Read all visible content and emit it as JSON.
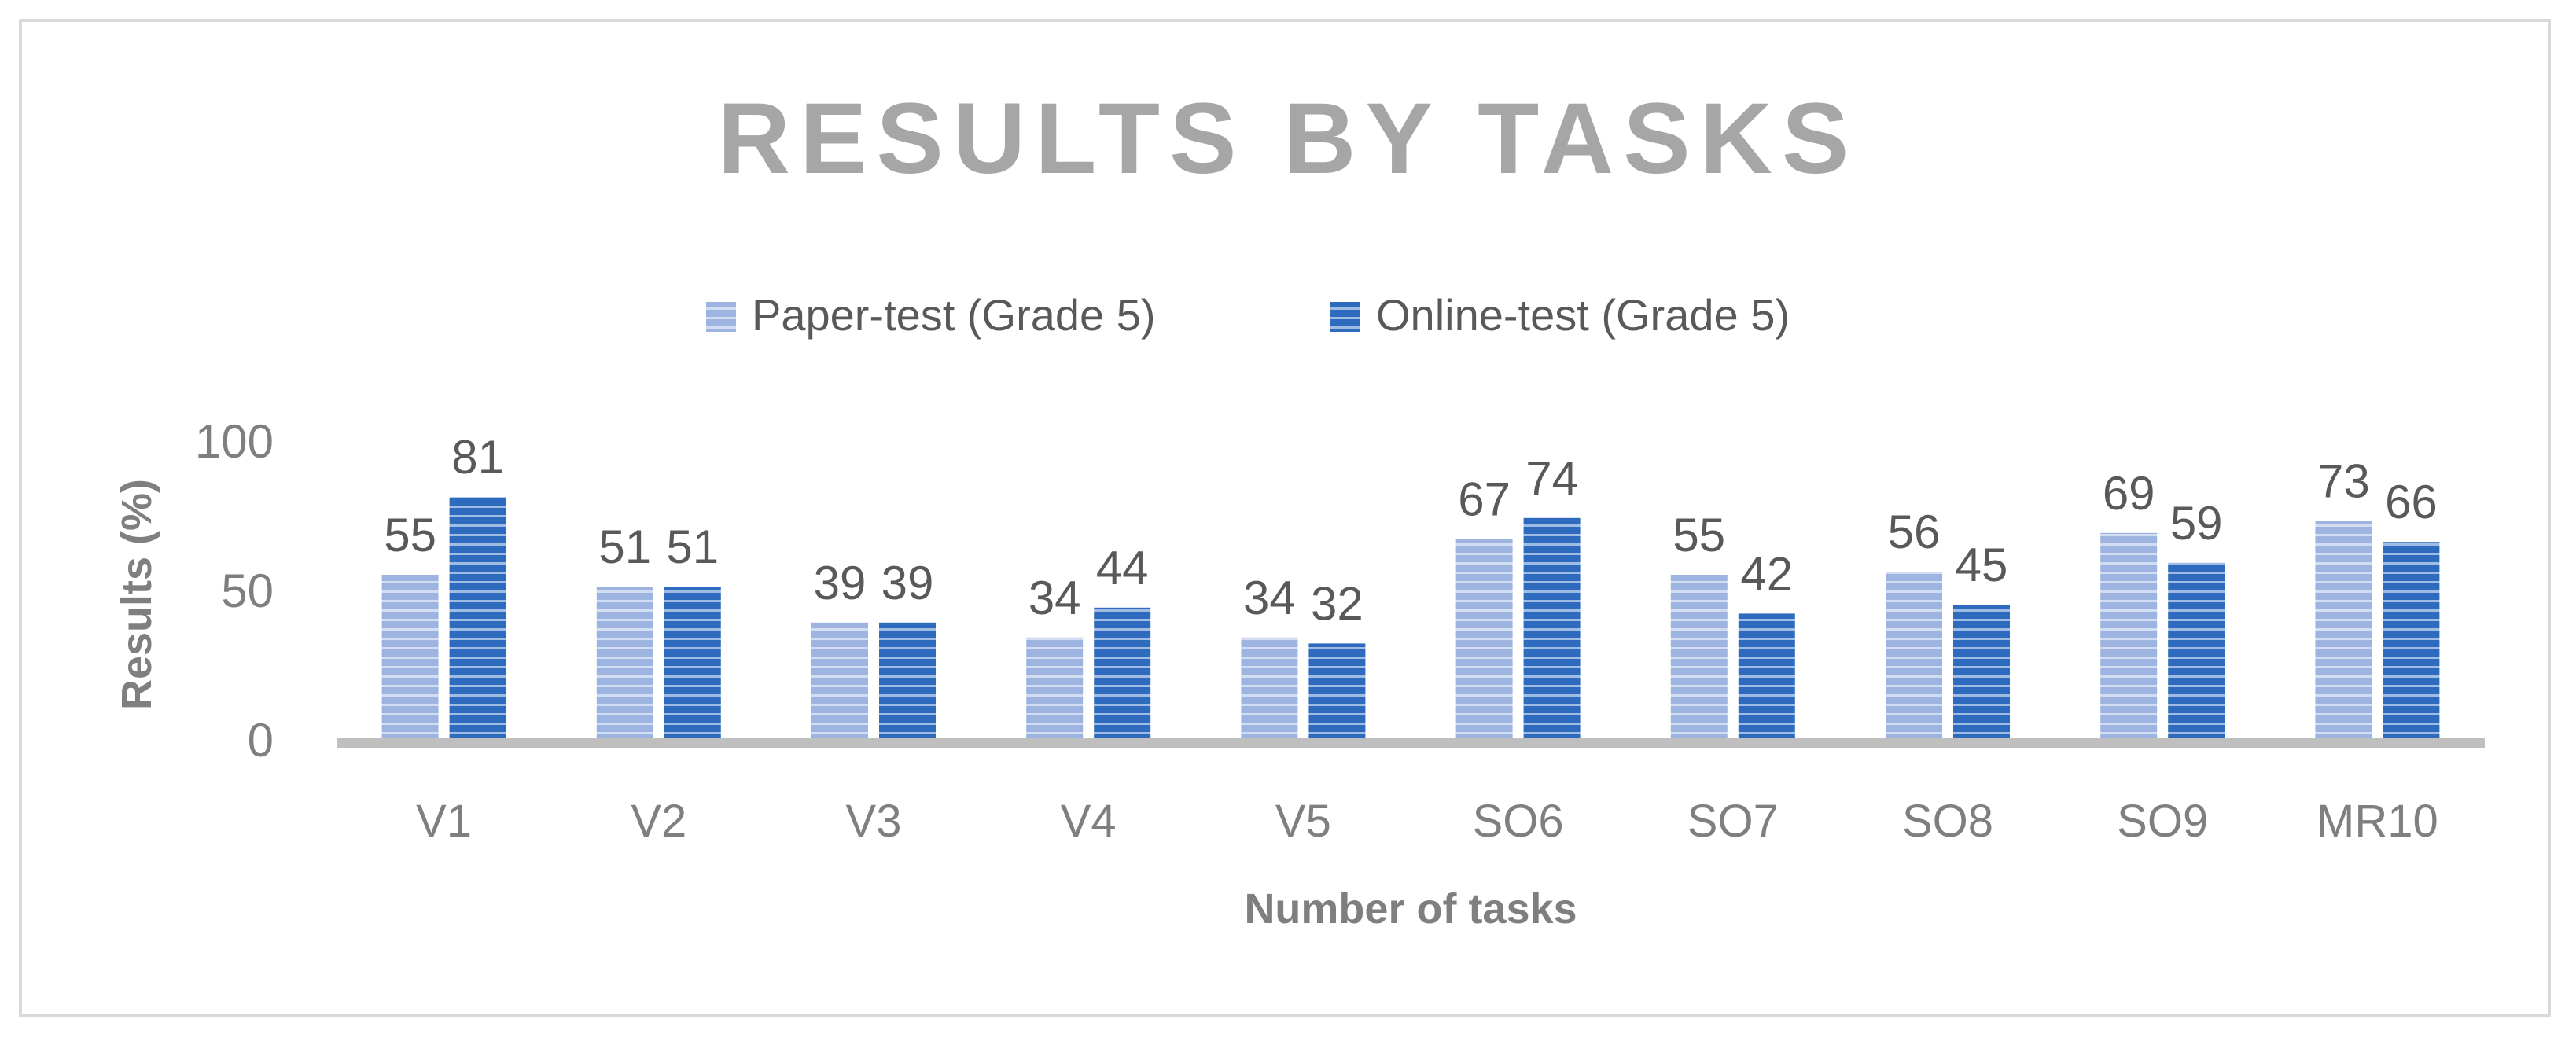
{
  "chart_data": {
    "type": "bar",
    "title": "RESULTS BY TASKS",
    "xlabel": "Number of tasks",
    "ylabel": "Results (%)",
    "ylim": [
      0,
      100
    ],
    "yticks": [
      "0",
      "50",
      "100"
    ],
    "grid": false,
    "legend_position": "top",
    "categories": [
      "V1",
      "V2",
      "V3",
      "V4",
      "V5",
      "SO6",
      "SO7",
      "SO8",
      "SO9",
      "MR10"
    ],
    "series": [
      {
        "name": "Paper-test (Grade 5)",
        "values": [
          55,
          51,
          39,
          34,
          34,
          67,
          55,
          56,
          69,
          73
        ],
        "color": "#9db3e0",
        "stripe_color": "#ffffff"
      },
      {
        "name": "Online-test (Grade 5)",
        "values": [
          81,
          51,
          39,
          44,
          32,
          74,
          42,
          45,
          59,
          66
        ],
        "color": "#2e6bbf",
        "stripe_color": "#ffffff"
      }
    ],
    "colors": {
      "axis_line": "#bfbfbf",
      "frame_border": "#d9d9d9"
    }
  }
}
